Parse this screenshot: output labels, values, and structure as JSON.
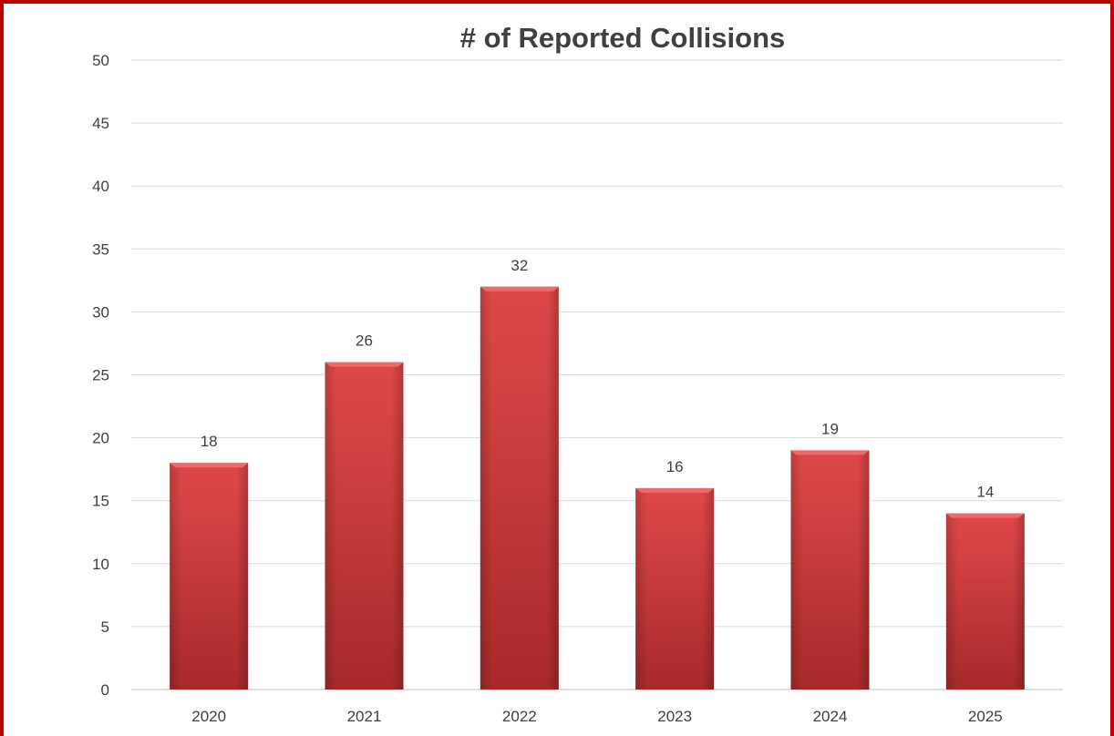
{
  "chart_data": {
    "type": "bar",
    "title": "# of Reported Collisions",
    "categories": [
      "2020",
      "2021",
      "2022",
      "2023",
      "2024",
      "2025"
    ],
    "values": [
      18,
      26,
      32,
      16,
      19,
      14
    ],
    "ylim": [
      0,
      50
    ],
    "yticks": [
      0,
      5,
      10,
      15,
      20,
      25,
      30,
      35,
      40,
      45,
      50
    ],
    "grid": true,
    "legend": "none",
    "data_labels": true,
    "colors": {
      "bar_light": "#e04848",
      "bar_dark": "#a82a2a",
      "border": "#c00000"
    }
  }
}
